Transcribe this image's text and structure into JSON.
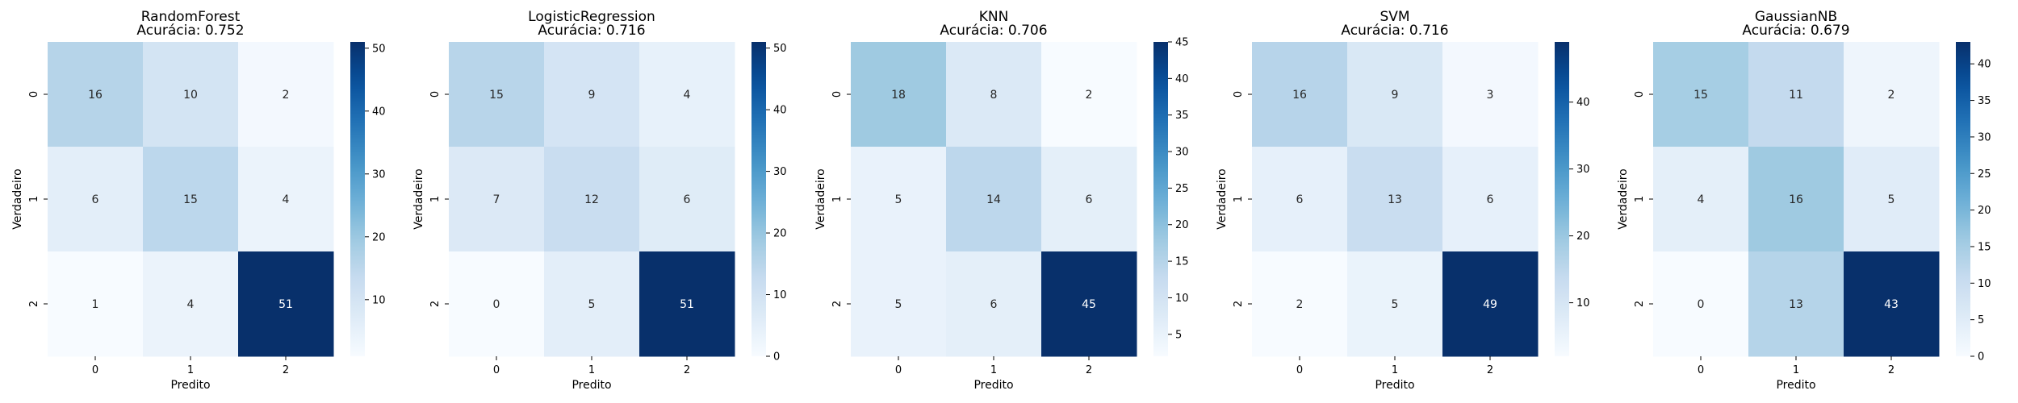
{
  "chart_data": [
    {
      "type": "heatmap",
      "title": "RandomForest",
      "subtitle": "Acurácia: 0.752",
      "xlabel": "Predito",
      "ylabel": "Verdadeiro",
      "x_categories": [
        "0",
        "1",
        "2"
      ],
      "y_categories": [
        "0",
        "1",
        "2"
      ],
      "values": [
        [
          16,
          10,
          2
        ],
        [
          6,
          15,
          4
        ],
        [
          1,
          4,
          51
        ]
      ],
      "colorbar": {
        "min": 1,
        "max": 51,
        "ticks": [
          10,
          20,
          30,
          40,
          50
        ]
      }
    },
    {
      "type": "heatmap",
      "title": "LogisticRegression",
      "subtitle": "Acurácia: 0.716",
      "xlabel": "Predito",
      "ylabel": "Verdadeiro",
      "x_categories": [
        "0",
        "1",
        "2"
      ],
      "y_categories": [
        "0",
        "1",
        "2"
      ],
      "values": [
        [
          15,
          9,
          4
        ],
        [
          7,
          12,
          6
        ],
        [
          0,
          5,
          51
        ]
      ],
      "colorbar": {
        "min": 0,
        "max": 51,
        "ticks": [
          0,
          10,
          20,
          30,
          40,
          50
        ]
      }
    },
    {
      "type": "heatmap",
      "title": "KNN",
      "subtitle": "Acurácia: 0.706",
      "xlabel": "Predito",
      "ylabel": "Verdadeiro",
      "x_categories": [
        "0",
        "1",
        "2"
      ],
      "y_categories": [
        "0",
        "1",
        "2"
      ],
      "values": [
        [
          18,
          8,
          2
        ],
        [
          5,
          14,
          6
        ],
        [
          5,
          6,
          45
        ]
      ],
      "colorbar": {
        "min": 2,
        "max": 45,
        "ticks": [
          5,
          10,
          15,
          20,
          25,
          30,
          35,
          40,
          45
        ]
      }
    },
    {
      "type": "heatmap",
      "title": "SVM",
      "subtitle": "Acurácia: 0.716",
      "xlabel": "Predito",
      "ylabel": "Verdadeiro",
      "x_categories": [
        "0",
        "1",
        "2"
      ],
      "y_categories": [
        "0",
        "1",
        "2"
      ],
      "values": [
        [
          16,
          9,
          3
        ],
        [
          6,
          13,
          6
        ],
        [
          2,
          5,
          49
        ]
      ],
      "colorbar": {
        "min": 2,
        "max": 49,
        "ticks": [
          10,
          20,
          30,
          40
        ]
      }
    },
    {
      "type": "heatmap",
      "title": "GaussianNB",
      "subtitle": "Acurácia: 0.679",
      "xlabel": "Predito",
      "ylabel": "Verdadeiro",
      "x_categories": [
        "0",
        "1",
        "2"
      ],
      "y_categories": [
        "0",
        "1",
        "2"
      ],
      "values": [
        [
          15,
          11,
          2
        ],
        [
          4,
          16,
          5
        ],
        [
          0,
          13,
          43
        ]
      ],
      "colorbar": {
        "min": 0,
        "max": 43,
        "ticks": [
          0,
          5,
          10,
          15,
          20,
          25,
          30,
          35,
          40
        ]
      }
    }
  ],
  "colormap": {
    "name": "Blues",
    "stops": [
      "#f7fbff",
      "#deebf7",
      "#c6dbef",
      "#9ecae1",
      "#6baed6",
      "#4292c6",
      "#2171b5",
      "#08519c",
      "#08306b"
    ]
  }
}
